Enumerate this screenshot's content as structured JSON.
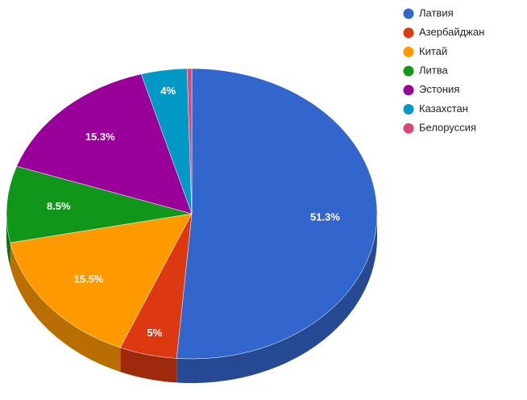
{
  "chart_data": {
    "type": "pie3d",
    "categories": [
      "Латвия",
      "Азербайджан",
      "Китай",
      "Литва",
      "Эстония",
      "Казахстан",
      "Белоруссия"
    ],
    "values": [
      51.3,
      5,
      15.5,
      8.5,
      15.3,
      4,
      0.4
    ],
    "value_labels": [
      "51.3%",
      "5%",
      "15.5%",
      "8.5%",
      "15.3%",
      "4%",
      null
    ],
    "colors": [
      "#3366cc",
      "#dc3912",
      "#ff9900",
      "#109618",
      "#990099",
      "#0099c6",
      "#dd4477"
    ],
    "legend": "right"
  }
}
